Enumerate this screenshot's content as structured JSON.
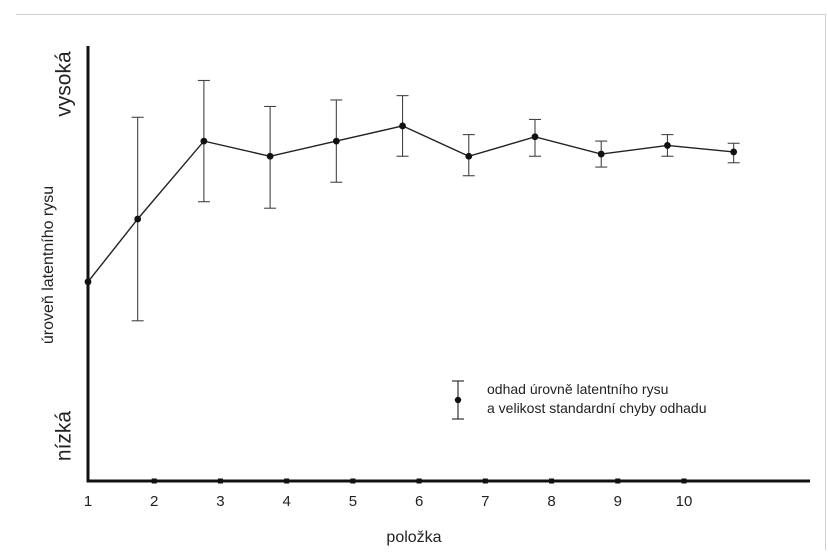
{
  "chart_data": {
    "type": "line",
    "xlabel": "položka",
    "ylabel": "úroveň latentního rysu",
    "y_level_high": "vysoká",
    "y_level_low": "nízká",
    "x_ticks": [
      1,
      2,
      3,
      4,
      5,
      6,
      7,
      8,
      9,
      10
    ],
    "xlim": [
      1,
      11.7
    ],
    "ylim": [
      0,
      100
    ],
    "y_tick_labels": false,
    "grid": false,
    "legend": {
      "position": "bottom-right",
      "line1": "odhad úrovně latentního rysu",
      "line2": "a velikost standardní chyby odhadu"
    },
    "series": [
      {
        "points": [
          {
            "x": 1.0,
            "y": 46.0,
            "err_low": null,
            "err_high": null
          },
          {
            "x": 1.75,
            "y": 60.5,
            "err_low": 37.0,
            "err_high": 84.0
          },
          {
            "x": 2.75,
            "y": 78.5,
            "err_low": 64.5,
            "err_high": 92.5
          },
          {
            "x": 3.75,
            "y": 75.0,
            "err_low": 63.0,
            "err_high": 86.5
          },
          {
            "x": 4.75,
            "y": 78.5,
            "err_low": 69.0,
            "err_high": 88.0
          },
          {
            "x": 5.75,
            "y": 82.0,
            "err_low": 75.0,
            "err_high": 89.0
          },
          {
            "x": 6.75,
            "y": 75.0,
            "err_low": 70.5,
            "err_high": 80.0
          },
          {
            "x": 7.75,
            "y": 79.5,
            "err_low": 75.0,
            "err_high": 83.5
          },
          {
            "x": 8.75,
            "y": 75.5,
            "err_low": 72.5,
            "err_high": 78.5
          },
          {
            "x": 9.75,
            "y": 77.5,
            "err_low": 75.0,
            "err_high": 80.0
          },
          {
            "x": 10.75,
            "y": 76.0,
            "err_low": 73.5,
            "err_high": 78.0
          }
        ]
      }
    ]
  }
}
